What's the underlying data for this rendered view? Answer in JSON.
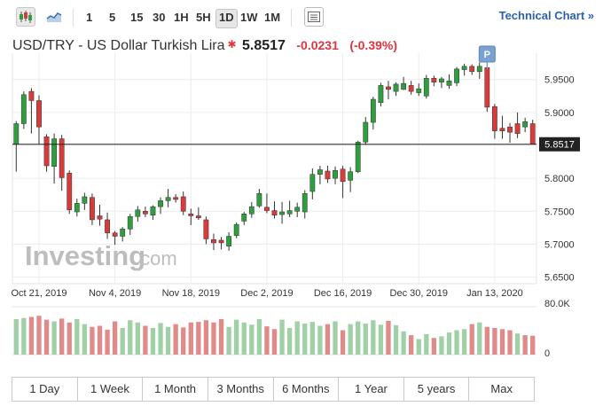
{
  "toolbar": {
    "periods": [
      "1",
      "5",
      "15",
      "30",
      "1H",
      "5H",
      "1D",
      "1W",
      "1M"
    ],
    "active_period": "1D",
    "technical_chart": "Technical Chart »"
  },
  "header": {
    "name": "USD/TRY - US Dollar Turkish Lira",
    "price": "5.8517",
    "change": "-0.0231",
    "change_pct": "(-0.39%)"
  },
  "ranges": [
    "1 Day",
    "1 Week",
    "1 Month",
    "3 Months",
    "6 Months",
    "1 Year",
    "5 years",
    "Max"
  ],
  "colors": {
    "up": "#2f9e3f",
    "down": "#d93a3a",
    "vol_up": "#9fd0a6",
    "vol_down": "#e08a8a",
    "grid": "#ececec"
  },
  "chart_data": {
    "type": "candlestick",
    "title": "USD/TRY - US Dollar Turkish Lira",
    "ylim": [
      5.64,
      5.99
    ],
    "y_ticks": [
      5.95,
      5.9,
      5.85,
      5.8,
      5.75,
      5.7,
      5.65
    ],
    "y_tick_labels": [
      "5.9500",
      "5.9000",
      "5.8500",
      "5.8000",
      "5.7500",
      "5.7000",
      "5.6500"
    ],
    "x_tick_labels": [
      "Oct 21, 2019",
      "Nov 4, 2019",
      "Nov 18, 2019",
      "Dec 2, 2019",
      "Dec 16, 2019",
      "Dec 30, 2019",
      "Jan 13, 2020"
    ],
    "x_tick_indices": [
      3,
      13,
      23,
      33,
      43,
      53,
      63
    ],
    "last_price": 5.8517,
    "last_price_label": "5.8517",
    "marker_label": "P",
    "marker_index": 62,
    "volume_max_label": "80.0K",
    "volume_min_label": "0",
    "watermark": "Investing",
    "watermark_suffix": ".com",
    "candles": [
      {
        "o": 5.852,
        "h": 5.887,
        "l": 5.81,
        "c": 5.883
      },
      {
        "o": 5.883,
        "h": 5.932,
        "l": 5.875,
        "c": 5.927
      },
      {
        "o": 5.932,
        "h": 5.937,
        "l": 5.868,
        "c": 5.918
      },
      {
        "o": 5.918,
        "h": 5.926,
        "l": 5.852,
        "c": 5.878
      },
      {
        "o": 5.863,
        "h": 5.867,
        "l": 5.81,
        "c": 5.819
      },
      {
        "o": 5.818,
        "h": 5.868,
        "l": 5.792,
        "c": 5.86
      },
      {
        "o": 5.86,
        "h": 5.866,
        "l": 5.781,
        "c": 5.801
      },
      {
        "o": 5.808,
        "h": 5.812,
        "l": 5.746,
        "c": 5.752
      },
      {
        "o": 5.749,
        "h": 5.769,
        "l": 5.742,
        "c": 5.762
      },
      {
        "o": 5.762,
        "h": 5.778,
        "l": 5.752,
        "c": 5.772
      },
      {
        "o": 5.771,
        "h": 5.777,
        "l": 5.729,
        "c": 5.737
      },
      {
        "o": 5.743,
        "h": 5.76,
        "l": 5.728,
        "c": 5.738
      },
      {
        "o": 5.737,
        "h": 5.748,
        "l": 5.708,
        "c": 5.717
      },
      {
        "o": 5.717,
        "h": 5.72,
        "l": 5.699,
        "c": 5.712
      },
      {
        "o": 5.712,
        "h": 5.726,
        "l": 5.704,
        "c": 5.723
      },
      {
        "o": 5.723,
        "h": 5.746,
        "l": 5.714,
        "c": 5.742
      },
      {
        "o": 5.742,
        "h": 5.758,
        "l": 5.734,
        "c": 5.752
      },
      {
        "o": 5.75,
        "h": 5.757,
        "l": 5.741,
        "c": 5.746
      },
      {
        "o": 5.744,
        "h": 5.759,
        "l": 5.737,
        "c": 5.757
      },
      {
        "o": 5.757,
        "h": 5.771,
        "l": 5.746,
        "c": 5.766
      },
      {
        "o": 5.766,
        "h": 5.784,
        "l": 5.756,
        "c": 5.771
      },
      {
        "o": 5.771,
        "h": 5.776,
        "l": 5.763,
        "c": 5.768
      },
      {
        "o": 5.772,
        "h": 5.78,
        "l": 5.744,
        "c": 5.75
      },
      {
        "o": 5.746,
        "h": 5.754,
        "l": 5.729,
        "c": 5.743
      },
      {
        "o": 5.743,
        "h": 5.756,
        "l": 5.737,
        "c": 5.74
      },
      {
        "o": 5.737,
        "h": 5.742,
        "l": 5.7,
        "c": 5.708
      },
      {
        "o": 5.707,
        "h": 5.716,
        "l": 5.691,
        "c": 5.702
      },
      {
        "o": 5.706,
        "h": 5.711,
        "l": 5.692,
        "c": 5.702
      },
      {
        "o": 5.697,
        "h": 5.718,
        "l": 5.69,
        "c": 5.712
      },
      {
        "o": 5.713,
        "h": 5.733,
        "l": 5.709,
        "c": 5.73
      },
      {
        "o": 5.735,
        "h": 5.749,
        "l": 5.729,
        "c": 5.746
      },
      {
        "o": 5.746,
        "h": 5.764,
        "l": 5.74,
        "c": 5.757
      },
      {
        "o": 5.758,
        "h": 5.784,
        "l": 5.755,
        "c": 5.777
      },
      {
        "o": 5.756,
        "h": 5.777,
        "l": 5.747,
        "c": 5.751
      },
      {
        "o": 5.751,
        "h": 5.765,
        "l": 5.739,
        "c": 5.744
      },
      {
        "o": 5.745,
        "h": 5.764,
        "l": 5.731,
        "c": 5.749
      },
      {
        "o": 5.746,
        "h": 5.766,
        "l": 5.741,
        "c": 5.751
      },
      {
        "o": 5.75,
        "h": 5.763,
        "l": 5.741,
        "c": 5.756
      },
      {
        "o": 5.749,
        "h": 5.782,
        "l": 5.739,
        "c": 5.777
      },
      {
        "o": 5.78,
        "h": 5.815,
        "l": 5.768,
        "c": 5.806
      },
      {
        "o": 5.806,
        "h": 5.819,
        "l": 5.791,
        "c": 5.813
      },
      {
        "o": 5.811,
        "h": 5.819,
        "l": 5.793,
        "c": 5.799
      },
      {
        "o": 5.8,
        "h": 5.818,
        "l": 5.791,
        "c": 5.812
      },
      {
        "o": 5.814,
        "h": 5.819,
        "l": 5.77,
        "c": 5.795
      },
      {
        "o": 5.797,
        "h": 5.817,
        "l": 5.779,
        "c": 5.81
      },
      {
        "o": 5.81,
        "h": 5.857,
        "l": 5.808,
        "c": 5.855
      },
      {
        "o": 5.855,
        "h": 5.893,
        "l": 5.851,
        "c": 5.885
      },
      {
        "o": 5.885,
        "h": 5.924,
        "l": 5.874,
        "c": 5.92
      },
      {
        "o": 5.915,
        "h": 5.945,
        "l": 5.909,
        "c": 5.941
      },
      {
        "o": 5.939,
        "h": 5.948,
        "l": 5.92,
        "c": 5.935
      },
      {
        "o": 5.932,
        "h": 5.946,
        "l": 5.925,
        "c": 5.943
      },
      {
        "o": 5.935,
        "h": 5.954,
        "l": 5.934,
        "c": 5.944
      },
      {
        "o": 5.941,
        "h": 5.948,
        "l": 5.927,
        "c": 5.932
      },
      {
        "o": 5.93,
        "h": 5.944,
        "l": 5.925,
        "c": 5.936
      },
      {
        "o": 5.925,
        "h": 5.957,
        "l": 5.921,
        "c": 5.952
      },
      {
        "o": 5.952,
        "h": 5.956,
        "l": 5.94,
        "c": 5.946
      },
      {
        "o": 5.946,
        "h": 5.954,
        "l": 5.937,
        "c": 5.951
      },
      {
        "o": 5.941,
        "h": 5.958,
        "l": 5.936,
        "c": 5.948
      },
      {
        "o": 5.945,
        "h": 5.969,
        "l": 5.94,
        "c": 5.966
      },
      {
        "o": 5.965,
        "h": 5.974,
        "l": 5.956,
        "c": 5.97
      },
      {
        "o": 5.97,
        "h": 5.973,
        "l": 5.957,
        "c": 5.962
      },
      {
        "o": 5.962,
        "h": 5.976,
        "l": 5.951,
        "c": 5.97
      },
      {
        "o": 5.968,
        "h": 5.983,
        "l": 5.901,
        "c": 5.908
      },
      {
        "o": 5.909,
        "h": 5.913,
        "l": 5.86,
        "c": 5.872
      },
      {
        "o": 5.876,
        "h": 5.895,
        "l": 5.86,
        "c": 5.872
      },
      {
        "o": 5.878,
        "h": 5.884,
        "l": 5.854,
        "c": 5.87
      },
      {
        "o": 5.883,
        "h": 5.9,
        "l": 5.861,
        "c": 5.868
      },
      {
        "o": 5.878,
        "h": 5.892,
        "l": 5.87,
        "c": 5.886
      },
      {
        "o": 5.883,
        "h": 5.889,
        "l": 5.852,
        "c": 5.852
      }
    ],
    "volume": [
      64,
      66,
      68,
      70,
      63,
      60,
      65,
      58,
      64,
      55,
      50,
      52,
      45,
      60,
      48,
      62,
      58,
      52,
      48,
      57,
      50,
      55,
      49,
      58,
      59,
      62,
      58,
      64,
      50,
      63,
      58,
      54,
      64,
      51,
      46,
      63,
      48,
      60,
      56,
      59,
      52,
      55,
      60,
      44,
      55,
      60,
      56,
      62,
      54,
      61,
      53,
      42,
      35,
      28,
      37,
      30,
      33,
      40,
      44,
      46,
      55,
      58,
      50,
      48,
      46,
      44,
      38,
      35,
      34
    ],
    "volume_up": [
      1,
      1,
      0,
      0,
      0,
      1,
      0,
      0,
      1,
      1,
      0,
      0,
      0,
      0,
      1,
      1,
      1,
      0,
      1,
      1,
      1,
      0,
      0,
      0,
      0,
      0,
      0,
      0,
      1,
      1,
      1,
      1,
      1,
      0,
      0,
      1,
      1,
      1,
      1,
      1,
      1,
      0,
      1,
      0,
      1,
      1,
      1,
      1,
      1,
      0,
      1,
      1,
      0,
      1,
      1,
      0,
      1,
      1,
      1,
      1,
      0,
      1,
      0,
      0,
      0,
      0,
      1,
      0,
      0
    ]
  }
}
